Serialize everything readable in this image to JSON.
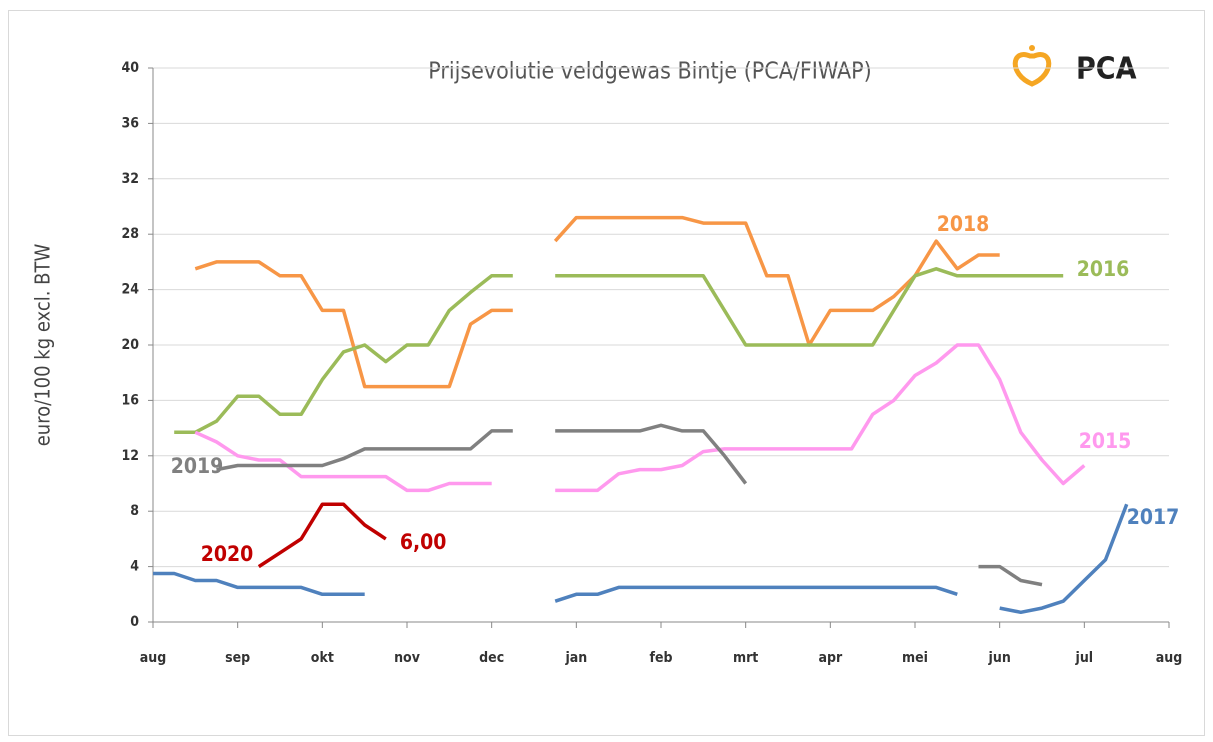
{
  "chart_data": {
    "type": "line",
    "title": "Prijsevolutie veldgewas Bintje (PCA/FIWAP)",
    "logo": "PCA",
    "y_label": "euro/100 kg excl. BTW",
    "categories": [
      "aug",
      null,
      null,
      null,
      "sep",
      null,
      null,
      null,
      "okt",
      null,
      null,
      null,
      "nov",
      null,
      null,
      null,
      "dec",
      null,
      null,
      null,
      "jan",
      null,
      null,
      null,
      "feb",
      null,
      null,
      null,
      "mrt",
      null,
      null,
      null,
      "apr",
      null,
      null,
      null,
      "mei",
      null,
      null,
      null,
      "jun",
      null,
      null,
      null,
      "jul",
      null,
      null,
      null,
      "aug"
    ],
    "ylim": [
      0,
      40
    ],
    "yticks": [
      0,
      4,
      8,
      12,
      16,
      20,
      24,
      28,
      32,
      36,
      40
    ],
    "grid": true,
    "series": [
      {
        "name": "2018",
        "color": "#f79646",
        "values": [
          null,
          null,
          25.5,
          26,
          26,
          26,
          25,
          25,
          22.5,
          22.5,
          17,
          17,
          17,
          17,
          17,
          21.5,
          22.5,
          22.5,
          null,
          27.5,
          29.2,
          29.2,
          29.2,
          29.2,
          29.2,
          29.2,
          28.8,
          28.8,
          28.8,
          25,
          25,
          20,
          22.5,
          22.5,
          22.5,
          23.5,
          25,
          27.5,
          25.5,
          26.5,
          26.5,
          null,
          null,
          null,
          null,
          null,
          null,
          null,
          null
        ]
      },
      {
        "name": "2016",
        "color": "#9bbb59",
        "values": [
          null,
          13.7,
          13.7,
          14.5,
          16.3,
          16.3,
          15,
          15,
          17.5,
          19.5,
          20,
          18.8,
          20,
          20,
          22.5,
          23.8,
          25,
          25,
          null,
          25,
          25,
          25,
          25,
          25,
          25,
          25,
          25,
          22.5,
          20,
          20,
          20,
          20,
          20,
          20,
          20,
          22.5,
          25,
          25.5,
          25,
          25,
          25,
          25,
          25,
          25,
          null,
          null,
          null,
          null,
          null
        ]
      },
      {
        "name": "2015",
        "color": "#ff99ee",
        "values": [
          null,
          null,
          13.7,
          13,
          12,
          11.7,
          11.7,
          10.5,
          10.5,
          10.5,
          10.5,
          10.5,
          9.5,
          9.5,
          10,
          10,
          10,
          null,
          null,
          9.5,
          9.5,
          9.5,
          10.7,
          11,
          11,
          11.3,
          12.3,
          12.5,
          12.5,
          12.5,
          12.5,
          12.5,
          12.5,
          12.5,
          15,
          16,
          17.8,
          18.7,
          20,
          20,
          17.5,
          13.7,
          11.7,
          10,
          11.3,
          null,
          null,
          null,
          null
        ]
      },
      {
        "name": "2019",
        "color": "#808080",
        "values": [
          null,
          null,
          null,
          11,
          11.3,
          11.3,
          11.3,
          11.3,
          11.3,
          11.8,
          12.5,
          12.5,
          12.5,
          12.5,
          12.5,
          12.5,
          13.8,
          13.8,
          null,
          13.8,
          13.8,
          13.8,
          13.8,
          13.8,
          14.2,
          13.8,
          13.8,
          12,
          10,
          null,
          null,
          null,
          null,
          null,
          null,
          null,
          null,
          null,
          null,
          4,
          4,
          3,
          2.7,
          null,
          null,
          null,
          null,
          null,
          null
        ]
      },
      {
        "name": "2017",
        "color": "#4f81bd",
        "values": [
          3.5,
          3.5,
          3,
          3,
          2.5,
          2.5,
          2.5,
          2.5,
          2,
          2,
          2,
          null,
          null,
          null,
          null,
          null,
          null,
          null,
          null,
          1.5,
          2,
          2,
          2.5,
          2.5,
          2.5,
          2.5,
          2.5,
          2.5,
          2.5,
          2.5,
          2.5,
          2.5,
          2.5,
          2.5,
          2.5,
          2.5,
          2.5,
          2.5,
          2,
          null,
          1,
          0.7,
          1,
          1.5,
          3,
          4.5,
          8.5,
          null,
          null
        ]
      },
      {
        "name": "2020",
        "color": "#c00000",
        "values": [
          null,
          null,
          null,
          null,
          null,
          4,
          5,
          6,
          8.5,
          8.5,
          7,
          6,
          null,
          null,
          null,
          null,
          null,
          null,
          null,
          null,
          null,
          null,
          null,
          null,
          null,
          null,
          null,
          null,
          null,
          null,
          null,
          null,
          null,
          null,
          null,
          null,
          null,
          null,
          null,
          null,
          null,
          null,
          null,
          null,
          null,
          null,
          null,
          null,
          null
        ],
        "value_labels": [
          null,
          null,
          null,
          null,
          null,
          null,
          null,
          null,
          null,
          null,
          null,
          "6,00",
          null,
          null,
          null,
          null,
          null,
          null,
          null,
          null,
          null,
          null,
          null,
          null,
          null,
          null,
          null,
          null,
          null,
          null,
          null,
          null,
          null,
          null,
          null,
          null,
          null,
          null,
          null,
          null,
          null,
          null,
          null,
          null,
          null,
          null,
          null,
          null,
          null
        ]
      }
    ]
  }
}
